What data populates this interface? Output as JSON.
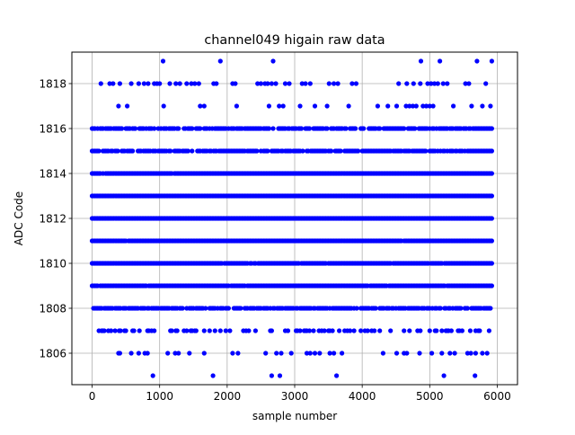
{
  "chart_data": {
    "type": "scatter",
    "title": "channel049 higain raw data",
    "xlabel": "sample number",
    "ylabel": "ADC Code",
    "xlim": [
      -300,
      6300
    ],
    "ylim": [
      1804.6,
      1819.4
    ],
    "x_ticks": [
      0,
      1000,
      2000,
      3000,
      4000,
      5000,
      6000
    ],
    "x_tick_labels": [
      "0",
      "1000",
      "2000",
      "3000",
      "4000",
      "5000",
      "6000"
    ],
    "y_ticks": [
      1806,
      1808,
      1810,
      1812,
      1814,
      1816,
      1818
    ],
    "y_tick_labels": [
      "1806",
      "1808",
      "1810",
      "1812",
      "1814",
      "1816",
      "1818"
    ],
    "grid": true,
    "marker_color": "#0000ff",
    "x_range": [
      0,
      5930
    ],
    "series": [
      {
        "levels": [
          {
            "y": 1812,
            "occupancy": "continuous"
          },
          {
            "y": 1813,
            "occupancy": "continuous"
          },
          {
            "y": 1811,
            "occupancy": "near-continuous"
          },
          {
            "y": 1814,
            "occupancy": "near-continuous"
          },
          {
            "y": 1810,
            "occupancy": "near-continuous"
          },
          {
            "y": 1809,
            "occupancy": "near-continuous"
          },
          {
            "y": 1815,
            "occupancy": "dense"
          },
          {
            "y": 1808,
            "occupancy": "dense"
          },
          {
            "y": 1816,
            "occupancy": "dense"
          },
          {
            "y": 1807,
            "occupancy": "moderate"
          },
          {
            "y": 1817,
            "occupancy": "sparse"
          },
          {
            "y": 1818,
            "occupancy": "sparse"
          },
          {
            "y": 1806,
            "occupancy": "sparse"
          }
        ],
        "points": [
          {
            "x": 1050,
            "y": 1819
          },
          {
            "x": 1900,
            "y": 1819
          },
          {
            "x": 2680,
            "y": 1819
          },
          {
            "x": 4870,
            "y": 1819
          },
          {
            "x": 5150,
            "y": 1819
          },
          {
            "x": 5700,
            "y": 1819
          },
          {
            "x": 5920,
            "y": 1819
          },
          {
            "x": 900,
            "y": 1805
          },
          {
            "x": 1790,
            "y": 1805
          },
          {
            "x": 2660,
            "y": 1805
          },
          {
            "x": 2780,
            "y": 1805
          },
          {
            "x": 3620,
            "y": 1805
          },
          {
            "x": 5210,
            "y": 1805
          },
          {
            "x": 5670,
            "y": 1805
          },
          {
            "x": 130,
            "y": 1818
          },
          {
            "x": 260,
            "y": 1818
          },
          {
            "x": 310,
            "y": 1818
          },
          {
            "x": 410,
            "y": 1818
          },
          {
            "x": 580,
            "y": 1818
          },
          {
            "x": 690,
            "y": 1818
          },
          {
            "x": 770,
            "y": 1818
          },
          {
            "x": 830,
            "y": 1818
          },
          {
            "x": 920,
            "y": 1818
          },
          {
            "x": 960,
            "y": 1818
          },
          {
            "x": 1000,
            "y": 1818
          },
          {
            "x": 1150,
            "y": 1818
          },
          {
            "x": 1240,
            "y": 1818
          },
          {
            "x": 1300,
            "y": 1818
          },
          {
            "x": 1400,
            "y": 1818
          },
          {
            "x": 1470,
            "y": 1818
          },
          {
            "x": 1520,
            "y": 1818
          },
          {
            "x": 1580,
            "y": 1818
          },
          {
            "x": 1800,
            "y": 1818
          },
          {
            "x": 1840,
            "y": 1818
          },
          {
            "x": 2080,
            "y": 1818
          },
          {
            "x": 2120,
            "y": 1818
          },
          {
            "x": 2450,
            "y": 1818
          },
          {
            "x": 2500,
            "y": 1818
          },
          {
            "x": 2560,
            "y": 1818
          },
          {
            "x": 2600,
            "y": 1818
          },
          {
            "x": 2660,
            "y": 1818
          },
          {
            "x": 2720,
            "y": 1818
          },
          {
            "x": 2860,
            "y": 1818
          },
          {
            "x": 2920,
            "y": 1818
          },
          {
            "x": 3110,
            "y": 1818
          },
          {
            "x": 3160,
            "y": 1818
          },
          {
            "x": 3230,
            "y": 1818
          },
          {
            "x": 3510,
            "y": 1818
          },
          {
            "x": 3580,
            "y": 1818
          },
          {
            "x": 3640,
            "y": 1818
          },
          {
            "x": 3850,
            "y": 1818
          },
          {
            "x": 3910,
            "y": 1818
          },
          {
            "x": 4540,
            "y": 1818
          },
          {
            "x": 4660,
            "y": 1818
          },
          {
            "x": 4760,
            "y": 1818
          },
          {
            "x": 4860,
            "y": 1818
          },
          {
            "x": 4970,
            "y": 1818
          },
          {
            "x": 5020,
            "y": 1818
          },
          {
            "x": 5070,
            "y": 1818
          },
          {
            "x": 5120,
            "y": 1818
          },
          {
            "x": 5200,
            "y": 1818
          },
          {
            "x": 5260,
            "y": 1818
          },
          {
            "x": 5530,
            "y": 1818
          },
          {
            "x": 5580,
            "y": 1818
          },
          {
            "x": 5830,
            "y": 1818
          },
          {
            "x": 390,
            "y": 1817
          },
          {
            "x": 520,
            "y": 1817
          },
          {
            "x": 1060,
            "y": 1817
          },
          {
            "x": 1600,
            "y": 1817
          },
          {
            "x": 1660,
            "y": 1817
          },
          {
            "x": 2140,
            "y": 1817
          },
          {
            "x": 2620,
            "y": 1817
          },
          {
            "x": 2770,
            "y": 1817
          },
          {
            "x": 2830,
            "y": 1817
          },
          {
            "x": 3080,
            "y": 1817
          },
          {
            "x": 3300,
            "y": 1817
          },
          {
            "x": 3480,
            "y": 1817
          },
          {
            "x": 3800,
            "y": 1817
          },
          {
            "x": 4230,
            "y": 1817
          },
          {
            "x": 4380,
            "y": 1817
          },
          {
            "x": 4510,
            "y": 1817
          },
          {
            "x": 4650,
            "y": 1817
          },
          {
            "x": 4700,
            "y": 1817
          },
          {
            "x": 4750,
            "y": 1817
          },
          {
            "x": 4800,
            "y": 1817
          },
          {
            "x": 4900,
            "y": 1817
          },
          {
            "x": 4950,
            "y": 1817
          },
          {
            "x": 5000,
            "y": 1817
          },
          {
            "x": 5050,
            "y": 1817
          },
          {
            "x": 5350,
            "y": 1817
          },
          {
            "x": 5620,
            "y": 1817
          },
          {
            "x": 5780,
            "y": 1817
          },
          {
            "x": 5900,
            "y": 1817
          },
          {
            "x": 390,
            "y": 1806
          },
          {
            "x": 410,
            "y": 1806
          },
          {
            "x": 580,
            "y": 1806
          },
          {
            "x": 690,
            "y": 1806
          },
          {
            "x": 780,
            "y": 1806
          },
          {
            "x": 820,
            "y": 1806
          },
          {
            "x": 1120,
            "y": 1806
          },
          {
            "x": 1230,
            "y": 1806
          },
          {
            "x": 1280,
            "y": 1806
          },
          {
            "x": 1440,
            "y": 1806
          },
          {
            "x": 1660,
            "y": 1806
          },
          {
            "x": 2080,
            "y": 1806
          },
          {
            "x": 2160,
            "y": 1806
          },
          {
            "x": 2570,
            "y": 1806
          },
          {
            "x": 2730,
            "y": 1806
          },
          {
            "x": 2800,
            "y": 1806
          },
          {
            "x": 2950,
            "y": 1806
          },
          {
            "x": 3180,
            "y": 1806
          },
          {
            "x": 3230,
            "y": 1806
          },
          {
            "x": 3300,
            "y": 1806
          },
          {
            "x": 3370,
            "y": 1806
          },
          {
            "x": 3520,
            "y": 1806
          },
          {
            "x": 3580,
            "y": 1806
          },
          {
            "x": 3700,
            "y": 1806
          },
          {
            "x": 4310,
            "y": 1806
          },
          {
            "x": 4510,
            "y": 1806
          },
          {
            "x": 4620,
            "y": 1806
          },
          {
            "x": 4660,
            "y": 1806
          },
          {
            "x": 4850,
            "y": 1806
          },
          {
            "x": 5030,
            "y": 1806
          },
          {
            "x": 5180,
            "y": 1806
          },
          {
            "x": 5300,
            "y": 1806
          },
          {
            "x": 5370,
            "y": 1806
          },
          {
            "x": 5560,
            "y": 1806
          },
          {
            "x": 5610,
            "y": 1806
          },
          {
            "x": 5680,
            "y": 1806
          },
          {
            "x": 5780,
            "y": 1806
          },
          {
            "x": 5850,
            "y": 1806
          }
        ]
      }
    ]
  }
}
